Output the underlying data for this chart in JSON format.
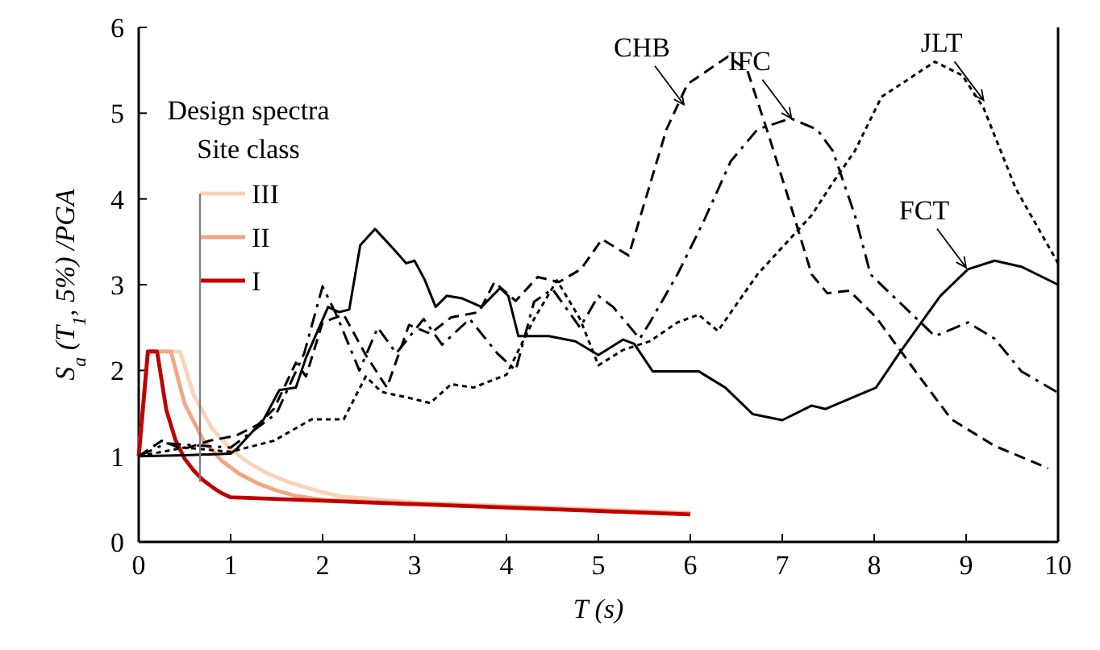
{
  "chart_data": {
    "type": "line",
    "xlabel": "T (s)",
    "ylabel": "S$_{a}$ (T$_{1}$, 5%) /PGA",
    "legend_title": "Design spectra\nSite class",
    "legend": "top left",
    "xlim": [
      0,
      10
    ],
    "ylim": [
      0,
      6
    ],
    "xticks": [
      0,
      1,
      2,
      3,
      4,
      5,
      6,
      7,
      8,
      9,
      10
    ],
    "yticks": [
      0,
      1,
      2,
      3,
      4,
      5,
      6
    ],
    "grid": false,
    "series": [
      {
        "color": "#000000",
        "line_style": "solid",
        "x": [
          0,
          0.5,
          1.0,
          1.06,
          1.36,
          1.53,
          1.71,
          1.82,
          2.06,
          2.18,
          2.29,
          2.41,
          2.57,
          2.76,
          2.91,
          3.0,
          3.11,
          3.23,
          3.35,
          3.52,
          3.73,
          3.93,
          4.02,
          4.13,
          4.46,
          4.75,
          5.0,
          5.27,
          5.39,
          5.59,
          6.09,
          6.38,
          6.68,
          7.0,
          7.32,
          7.47,
          8.02,
          8.26,
          8.72,
          9.02,
          9.31,
          9.6,
          10
        ],
        "values": [
          1.0,
          1.01,
          1.03,
          1.08,
          1.43,
          1.77,
          1.8,
          2.15,
          2.74,
          2.68,
          2.71,
          3.46,
          3.65,
          3.43,
          3.25,
          3.28,
          3.06,
          2.74,
          2.87,
          2.84,
          2.74,
          2.96,
          2.87,
          2.4,
          2.4,
          2.34,
          2.18,
          2.36,
          2.31,
          1.99,
          1.99,
          1.8,
          1.49,
          1.42,
          1.59,
          1.55,
          1.8,
          2.18,
          2.87,
          3.18,
          3.28,
          3.21,
          3.0
        ]
      },
      {
        "color": "#000000",
        "line_style": "dashed",
        "x": [
          0,
          0.25,
          0.48,
          0.77,
          1.06,
          1.3,
          1.47,
          1.71,
          1.82,
          2.0,
          2.23,
          2.47,
          2.7,
          2.94,
          3.17,
          3.4,
          3.7,
          3.87,
          4.1,
          4.34,
          4.57,
          4.81,
          5.04,
          5.33,
          5.74,
          5.97,
          6.41,
          6.62,
          6.85,
          7.09,
          7.32,
          7.49,
          7.73,
          8.02,
          8.49,
          8.84,
          9.31,
          9.89
        ],
        "values": [
          1.0,
          1.18,
          1.08,
          1.18,
          1.24,
          1.37,
          1.55,
          2.09,
          1.93,
          2.56,
          2.65,
          2.18,
          1.8,
          2.53,
          2.43,
          2.62,
          2.68,
          3.03,
          2.81,
          3.09,
          3.03,
          3.18,
          3.53,
          3.34,
          4.81,
          5.34,
          5.66,
          5.5,
          4.75,
          3.93,
          3.12,
          2.9,
          2.93,
          2.62,
          1.93,
          1.43,
          1.12,
          0.86
        ]
      },
      {
        "color": "#000000",
        "line_style": "dashdot",
        "x": [
          0,
          0.3,
          1.0,
          1.5,
          1.8,
          2.0,
          2.15,
          2.4,
          2.6,
          2.8,
          3.1,
          3.3,
          3.6,
          3.9,
          4.1,
          4.3,
          4.5,
          4.8,
          5.0,
          5.16,
          5.45,
          5.56,
          5.86,
          6.15,
          6.44,
          6.73,
          7.09,
          7.38,
          7.55,
          7.79,
          7.96,
          8.26,
          8.66,
          9.02,
          9.31,
          9.6,
          10
        ],
        "values": [
          1.0,
          1.15,
          1.1,
          1.5,
          2.2,
          2.98,
          2.65,
          2.0,
          2.5,
          2.2,
          2.6,
          2.3,
          2.6,
          2.2,
          2.0,
          2.8,
          2.95,
          2.5,
          2.87,
          2.74,
          2.37,
          2.56,
          3.12,
          3.75,
          4.44,
          4.81,
          4.94,
          4.81,
          4.56,
          3.81,
          3.12,
          2.81,
          2.4,
          2.56,
          2.37,
          1.99,
          1.74
        ]
      },
      {
        "color": "#000000",
        "line_style": "dotted",
        "x": [
          0,
          0.5,
          1.0,
          1.47,
          1.88,
          2.23,
          2.47,
          2.64,
          2.94,
          3.17,
          3.4,
          3.64,
          4.0,
          4.3,
          4.55,
          4.8,
          5.0,
          5.27,
          5.56,
          5.86,
          6.09,
          6.3,
          6.73,
          7.32,
          7.55,
          7.79,
          8.08,
          8.66,
          8.96,
          9.19,
          9.54,
          10
        ],
        "values": [
          1.0,
          1.1,
          1.05,
          1.18,
          1.43,
          1.43,
          1.93,
          1.75,
          1.68,
          1.62,
          1.84,
          1.8,
          1.95,
          2.6,
          3.05,
          2.6,
          2.06,
          2.24,
          2.34,
          2.56,
          2.65,
          2.46,
          3.12,
          3.81,
          4.19,
          4.56,
          5.19,
          5.6,
          5.44,
          5.06,
          4.12,
          3.25
        ]
      },
      {
        "name": "I",
        "color": "#c00000",
        "line_style": "solid",
        "x": [
          0,
          0.1,
          0.2,
          0.3,
          0.4,
          0.5,
          0.6,
          0.7,
          0.8,
          0.9,
          1.0,
          2,
          3,
          4,
          5,
          6
        ],
        "values": [
          1.0,
          2.22,
          2.22,
          1.54,
          1.19,
          0.97,
          0.83,
          0.72,
          0.64,
          0.57,
          0.52,
          0.48,
          0.44,
          0.4,
          0.36,
          0.32
        ]
      },
      {
        "name": "II",
        "color": "#f4a582",
        "line_style": "solid",
        "x": [
          0,
          0.1,
          0.35,
          0.5,
          0.7,
          0.9,
          1.1,
          1.3,
          1.5,
          1.7,
          2,
          3,
          4,
          5,
          6
        ],
        "values": [
          1.0,
          2.22,
          2.22,
          1.61,
          1.19,
          0.95,
          0.79,
          0.68,
          0.6,
          0.54,
          0.49,
          0.45,
          0.41,
          0.37,
          0.33
        ]
      },
      {
        "name": "III",
        "color": "#fbd3b8",
        "line_style": "solid",
        "x": [
          0,
          0.1,
          0.45,
          0.6,
          0.8,
          1.0,
          1.2,
          1.4,
          1.6,
          1.8,
          2.0,
          2.2,
          3,
          4,
          5,
          6
        ],
        "values": [
          1.0,
          2.22,
          2.22,
          1.71,
          1.32,
          1.08,
          0.92,
          0.8,
          0.71,
          0.64,
          0.58,
          0.53,
          0.46,
          0.42,
          0.38,
          0.34
        ]
      }
    ],
    "annotations": [
      {
        "text": "CHB",
        "x": 5.93,
        "y": 5.1
      },
      {
        "text": "IFC",
        "x": 7.1,
        "y": 4.94
      },
      {
        "text": "JLT",
        "x": 9.19,
        "y": 5.15
      },
      {
        "text": "FCT",
        "x": 9.0,
        "y": 3.2
      }
    ]
  }
}
